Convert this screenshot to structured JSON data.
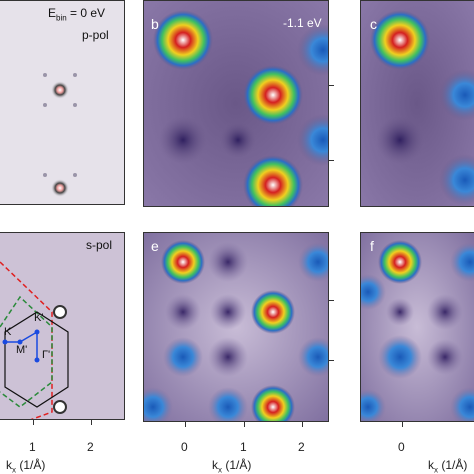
{
  "panels": {
    "a": {
      "label": "",
      "energy_prefix": "E",
      "energy_sub": "bin",
      "energy_value": " = 0 eV",
      "polarization": "p-pol"
    },
    "b": {
      "label": "b",
      "energy": "-1.1 eV"
    },
    "c": {
      "label": "c"
    },
    "d": {
      "label": "",
      "polarization": "s-pol"
    },
    "e": {
      "label": "e"
    },
    "f": {
      "label": "f"
    }
  },
  "bz_labels": {
    "K": "K",
    "K_prime": "K'",
    "M_prime": "M'",
    "Gamma_prime": "Γ'"
  },
  "axes": {
    "x_label_prefix": "k",
    "x_label_sub": "x",
    "x_label_unit": " (1/Å)",
    "left_ticks": [
      "1",
      "2"
    ],
    "middle_ticks": [
      "0",
      "1",
      "2"
    ],
    "right_ticks": [
      "0"
    ]
  },
  "colors": {
    "background_purple": "#7a6896",
    "hot_spot": "#d42020",
    "cool_spot": "#2a6ec8"
  }
}
